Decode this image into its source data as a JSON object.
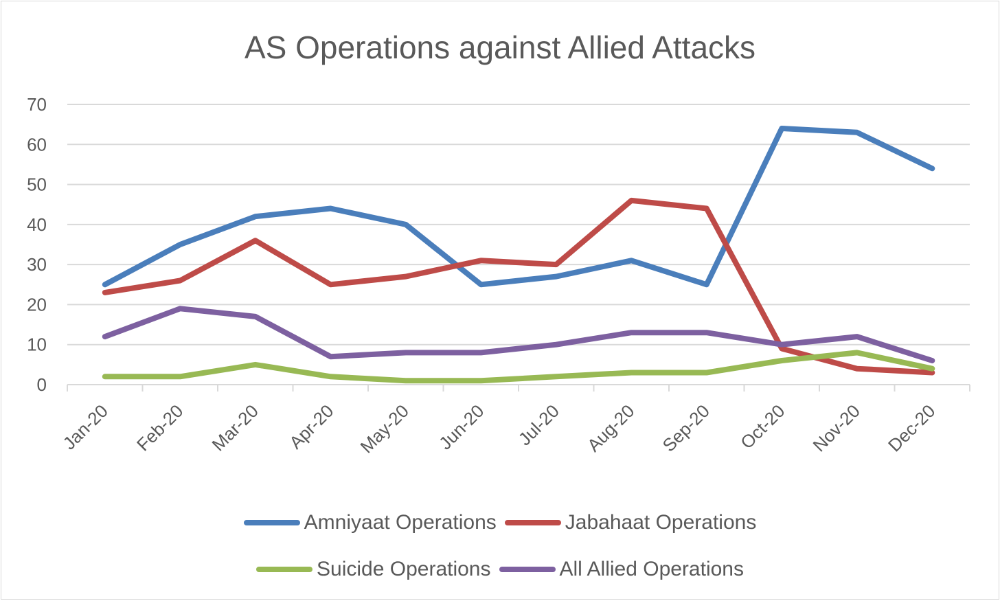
{
  "chart_data": {
    "type": "line",
    "title": "AS Operations against Allied Attacks",
    "categories": [
      "Jan-20",
      "Feb-20",
      "Mar-20",
      "Apr-20",
      "May-20",
      "Jun-20",
      "Jul-20",
      "Aug-20",
      "Sep-20",
      "Oct-20",
      "Nov-20",
      "Dec-20"
    ],
    "ylim": [
      0,
      70
    ],
    "yticks": [
      0,
      10,
      20,
      30,
      40,
      50,
      60,
      70
    ],
    "grid": true,
    "legend_position": "bottom",
    "series": [
      {
        "name": "Amniyaat Operations",
        "color": "#4a7ebb",
        "values": [
          25,
          35,
          42,
          44,
          40,
          25,
          27,
          31,
          25,
          64,
          63,
          54
        ]
      },
      {
        "name": "Jabahaat Operations",
        "color": "#be4b48",
        "values": [
          23,
          26,
          36,
          25,
          27,
          31,
          30,
          46,
          44,
          9,
          4,
          3
        ]
      },
      {
        "name": "Suicide Operations",
        "color": "#98b954",
        "values": [
          2,
          2,
          5,
          2,
          1,
          1,
          2,
          3,
          3,
          6,
          8,
          4
        ]
      },
      {
        "name": "All Allied Operations",
        "color": "#7d60a0",
        "values": [
          12,
          19,
          17,
          7,
          8,
          8,
          10,
          13,
          13,
          10,
          12,
          6
        ]
      }
    ]
  }
}
